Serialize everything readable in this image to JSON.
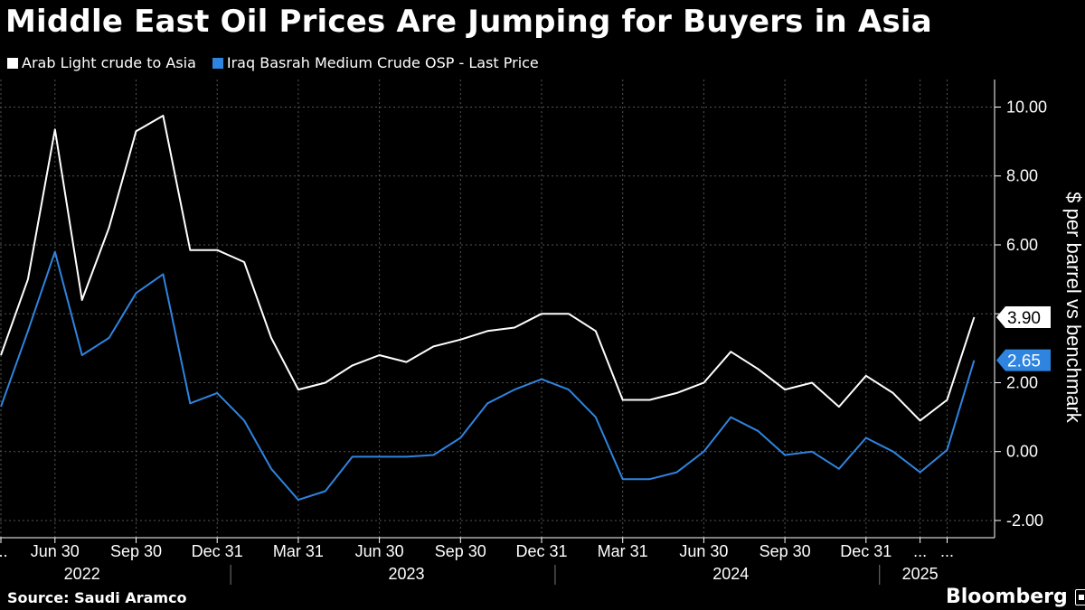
{
  "title": "Middle East Oil Prices Are Jumping for Buyers in Asia",
  "source": "Source: Saudi Aramco",
  "brand": "Bloomberg",
  "colors": {
    "background": "#000000",
    "series_white": "#ffffff",
    "series_blue": "#2f84e0",
    "grid": "#666666"
  },
  "chart_data": {
    "type": "line",
    "title": "Middle East Oil Prices Are Jumping for Buyers in Asia",
    "ylabel": "$ per barrel vs benchmark",
    "ylim": [
      -2.5,
      10.8
    ],
    "yticks": [
      10,
      8,
      6,
      4,
      2,
      0,
      -2
    ],
    "ytick_labels": [
      "10.00",
      "8.00",
      "6.00",
      "4.00",
      "2.00",
      "0.00",
      "-2.00"
    ],
    "x_months": [
      "2022-04",
      "2022-05",
      "2022-06",
      "2022-07",
      "2022-08",
      "2022-09",
      "2022-10",
      "2022-11",
      "2022-12",
      "2023-01",
      "2023-02",
      "2023-03",
      "2023-04",
      "2023-05",
      "2023-06",
      "2023-07",
      "2023-08",
      "2023-09",
      "2023-10",
      "2023-11",
      "2023-12",
      "2024-01",
      "2024-02",
      "2024-03",
      "2024-04",
      "2024-05",
      "2024-06",
      "2024-07",
      "2024-08",
      "2024-09",
      "2024-10",
      "2024-11",
      "2024-12",
      "2025-01",
      "2025-02",
      "2025-03",
      "2025-04"
    ],
    "series": [
      {
        "name": "Arab Light crude to Asia",
        "color": "#ffffff",
        "values": [
          2.8,
          5.0,
          9.35,
          4.4,
          6.5,
          9.3,
          9.75,
          5.85,
          5.85,
          5.5,
          3.3,
          1.8,
          2.0,
          2.5,
          2.8,
          2.6,
          3.05,
          3.25,
          3.5,
          3.6,
          4.0,
          4.0,
          3.5,
          1.5,
          1.5,
          1.7,
          2.0,
          2.9,
          2.4,
          1.8,
          2.0,
          1.3,
          2.2,
          1.7,
          0.9,
          1.5,
          3.9
        ],
        "last_label": "3.90"
      },
      {
        "name": "Iraq Basrah Medium Crude OSP - Last Price",
        "color": "#2f84e0",
        "values": [
          1.3,
          3.5,
          5.8,
          2.8,
          3.3,
          4.6,
          5.15,
          1.4,
          1.7,
          0.9,
          -0.5,
          -1.4,
          -1.15,
          -0.15,
          -0.15,
          -0.15,
          -0.1,
          0.4,
          1.4,
          1.8,
          2.1,
          1.8,
          1.0,
          -0.8,
          -0.8,
          -0.6,
          0.0,
          1.0,
          0.6,
          -0.1,
          0.0,
          -0.5,
          0.4,
          0.0,
          -0.6,
          0.05,
          2.65
        ],
        "last_label": "2.65"
      }
    ],
    "x_tick_labels": [
      "...",
      "Jun 30",
      "Sep 30",
      "Dec 31",
      "Mar 31",
      "Jun 30",
      "Sep 30",
      "Dec 31",
      "Mar 31",
      "Jun 30",
      "Sep 30",
      "Dec 31",
      "...",
      "..."
    ],
    "x_tick_months": [
      "2022-04",
      "2022-06",
      "2022-09",
      "2022-12",
      "2023-03",
      "2023-06",
      "2023-09",
      "2023-12",
      "2024-03",
      "2024-06",
      "2024-09",
      "2024-12",
      "2025-02",
      "2025-03"
    ],
    "year_labels": [
      {
        "label": "2022",
        "month": "2022-07"
      },
      {
        "label": "2023",
        "month": "2023-07"
      },
      {
        "label": "2024",
        "month": "2024-07"
      },
      {
        "label": "2025",
        "month": "2025-02"
      }
    ],
    "year_separators": [
      "2023-01",
      "2024-01",
      "2025-01"
    ],
    "grid": true,
    "legend": "top-left"
  }
}
